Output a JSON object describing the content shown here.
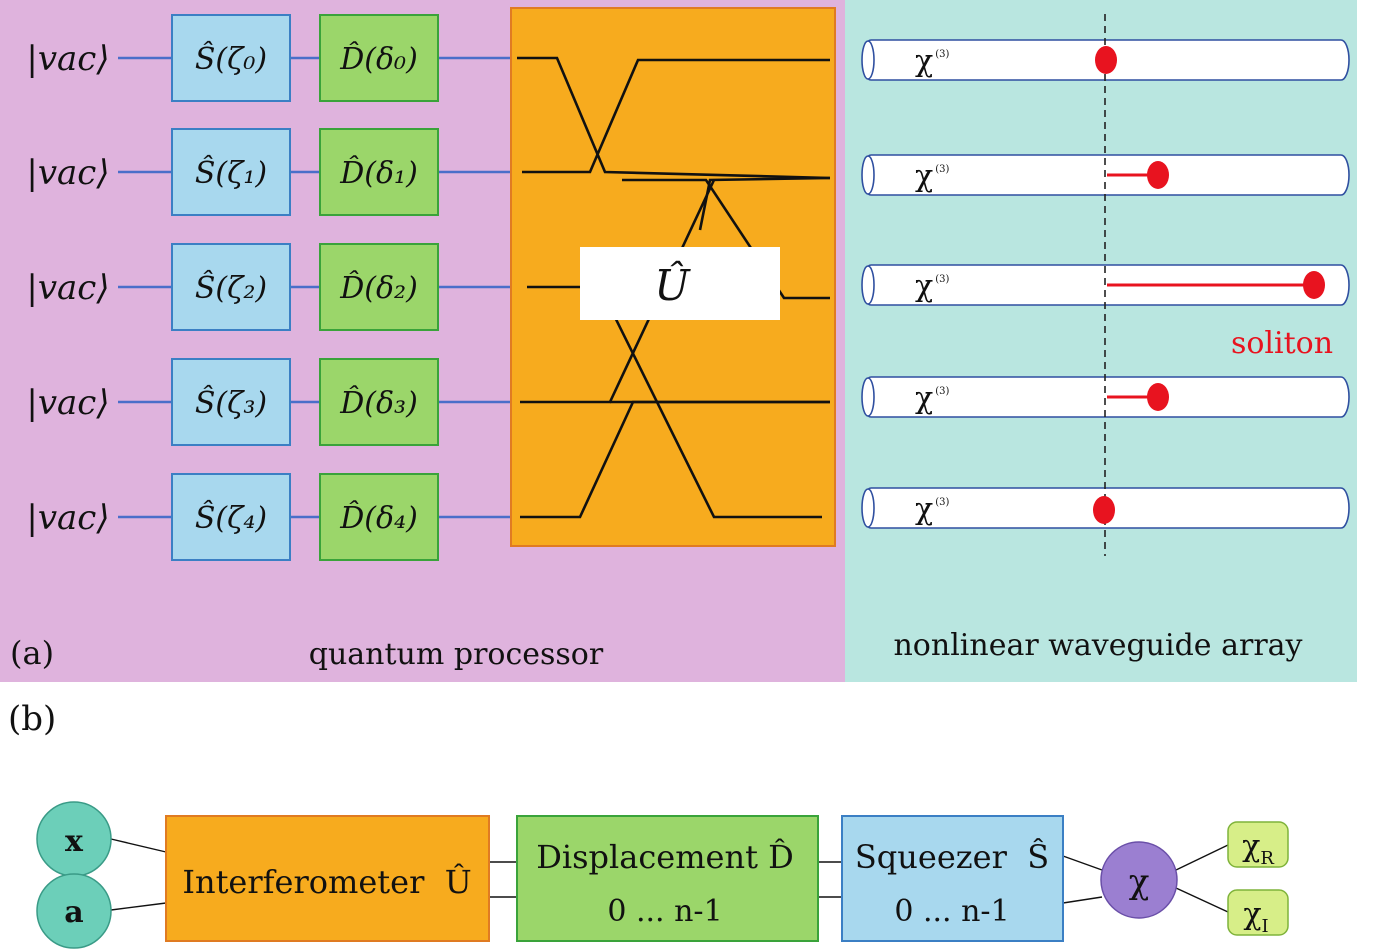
{
  "panel_a": {
    "label": "(a)",
    "processor_caption": "quantum processor",
    "waveguide_caption": "nonlinear waveguide array",
    "unitary_label": "Û",
    "inputs": [
      {
        "state": "|vac⟩",
        "squeezer": "Ŝ(ζ₀)",
        "displacement": "D̂(δ₀)"
      },
      {
        "state": "|vac⟩",
        "squeezer": "Ŝ(ζ₁)",
        "displacement": "D̂(δ₁)"
      },
      {
        "state": "|vac⟩",
        "squeezer": "Ŝ(ζ₂)",
        "displacement": "D̂(δ₂)"
      },
      {
        "state": "|vac⟩",
        "squeezer": "Ŝ(ζ₃)",
        "displacement": "D̂(δ₃)"
      },
      {
        "state": "|vac⟩",
        "squeezer": "Ŝ(ζ₄)",
        "displacement": "D̂(δ₄)"
      }
    ],
    "waveguides": [
      {
        "label": "χ",
        "superscript": "(3)"
      },
      {
        "label": "χ",
        "superscript": "(3)"
      },
      {
        "label": "χ",
        "superscript": "(3)"
      },
      {
        "label": "χ",
        "superscript": "(3)"
      },
      {
        "label": "χ",
        "superscript": "(3)"
      }
    ],
    "soliton_label": "soliton"
  },
  "panel_b": {
    "label": "(b)",
    "input_x": "x",
    "input_a": "a",
    "interferometer": "Interferometer  Û",
    "displacement_title": "Displacement D̂",
    "displacement_range": "0 ... n-1",
    "squeezer_title": "Squeezer  Ŝ",
    "squeezer_range": "0 ... n-1",
    "chi": "χ",
    "chi_r": "χ",
    "chi_r_sub": "R",
    "chi_i": "χ",
    "chi_i_sub": "I"
  },
  "colors": {
    "processor_bg": "#dfb3dd",
    "waveguide_bg": "#b9e6e0",
    "squeezer_fill": "#a8d8ee",
    "squeezer_stroke": "#3b7fc4",
    "displacement_fill": "#9bd66a",
    "displacement_stroke": "#3aa33a",
    "interferometer_fill": "#f7ab1e",
    "interferometer_stroke": "#e07b22",
    "wire": "#4a6ec9",
    "soliton": "#e8131f",
    "input_circle": "#6ccfb9",
    "chi_circle": "#9b7fd1",
    "output_fill": "#d7ee88"
  }
}
